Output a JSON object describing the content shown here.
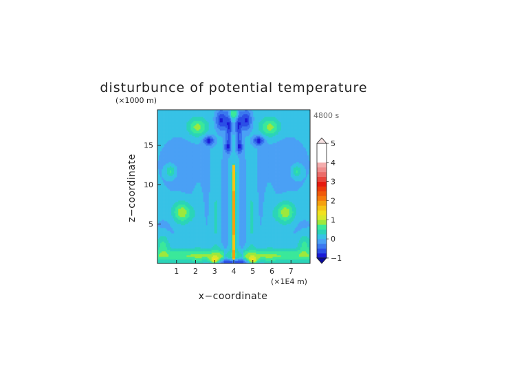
{
  "chart_data": {
    "type": "heatmap",
    "title": "disturbunce of potential temperature",
    "y_scale_note": "(×1000 m)",
    "time_label": "4800 s",
    "xlabel": "x−coordinate",
    "ylabel": "z−coordinate",
    "x_unit_note": "(×1E4 m)",
    "xlim": [
      0,
      8.0
    ],
    "ylim": [
      0,
      19.5
    ],
    "x_ticks": [
      1,
      2,
      3,
      4,
      5,
      6,
      7
    ],
    "y_ticks": [
      5,
      10,
      15
    ],
    "colorbar": {
      "levels": [
        -1,
        -0.75,
        -0.5,
        -0.25,
        0,
        0.25,
        0.5,
        0.75,
        1,
        1.25,
        1.5,
        1.75,
        2,
        2.25,
        2.5,
        2.75,
        3,
        3.25,
        3.5,
        3.75,
        4,
        4.25,
        4.5,
        4.75,
        5
      ],
      "tick_labels": [
        "5",
        "4",
        "3",
        "2",
        "1",
        "0",
        "−1"
      ],
      "tick_values": [
        5,
        4,
        3,
        2,
        1,
        0,
        -1
      ],
      "colors": [
        "#1b1bd6",
        "#2b4fe6",
        "#3b78ef",
        "#4aa0f5",
        "#37c2e6",
        "#2bd4b8",
        "#3be89a",
        "#9ee83c",
        "#d8e82a",
        "#f2e11e",
        "#f5c316",
        "#f5a00f",
        "#f57a0c",
        "#f05a0a",
        "#eb3a0a",
        "#e61a0f",
        "#e8453c",
        "#ec6b68",
        "#f08e8e",
        "#f4adad"
      ],
      "extend": "both"
    },
    "background_value": 0.1,
    "features": [
      {
        "kind": "vertical_streak",
        "x": 4.0,
        "z0": 0.5,
        "z1": 12.5,
        "value": 1.6
      },
      {
        "kind": "plume",
        "x": 4.0,
        "z0": 12,
        "z1": 19.5,
        "value": -0.6
      },
      {
        "kind": "low_band",
        "z": 0.8,
        "value": 0.9
      }
    ]
  }
}
